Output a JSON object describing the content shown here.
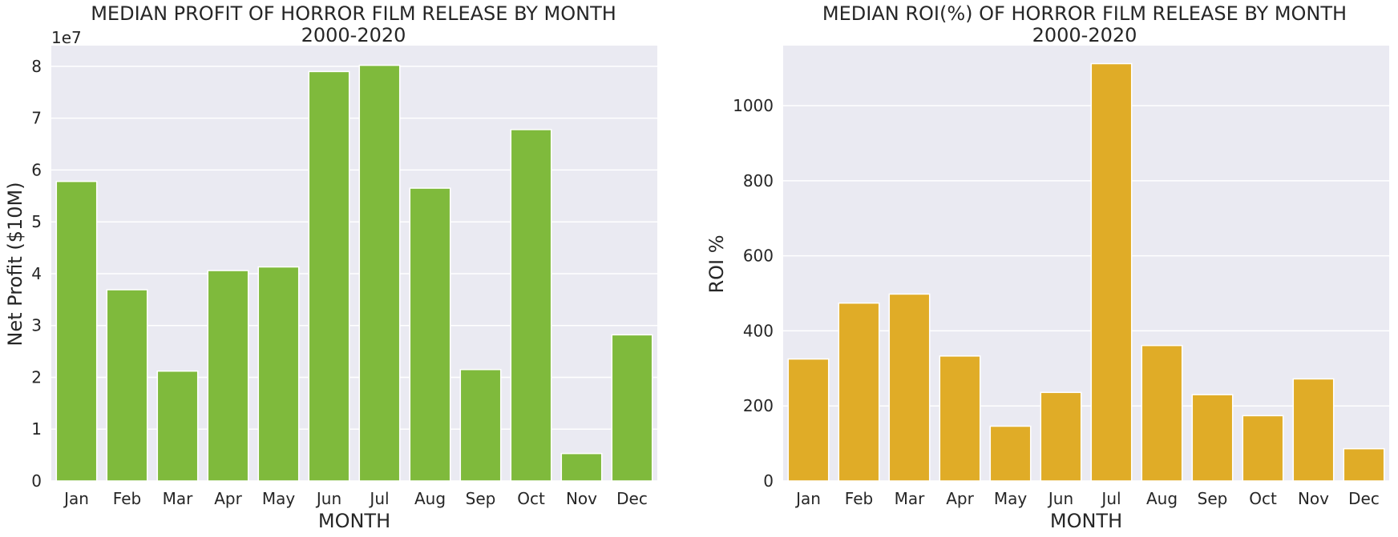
{
  "chart_data": [
    {
      "type": "bar",
      "title": "MEDIAN PROFIT OF HORROR FILM RELEASE BY MONTH",
      "subtitle": "2000-2020",
      "xlabel": "MONTH",
      "ylabel": "Net Profit ($10M)",
      "offset_label": "1e7",
      "categories": [
        "Jan",
        "Feb",
        "Mar",
        "Apr",
        "May",
        "Jun",
        "Jul",
        "Aug",
        "Sep",
        "Oct",
        "Nov",
        "Dec"
      ],
      "values": [
        57800000,
        36900000,
        21200000,
        40600000,
        41300000,
        79000000,
        80200000,
        56500000,
        21500000,
        67800000,
        5300000,
        28200000
      ],
      "ylim": [
        0,
        84000000
      ],
      "yticks": [
        0,
        10000000,
        20000000,
        30000000,
        40000000,
        50000000,
        60000000,
        70000000,
        80000000
      ],
      "ytick_labels": [
        "0",
        "1",
        "2",
        "3",
        "4",
        "5",
        "6",
        "7",
        "8"
      ],
      "color": "#7fba3c",
      "background": "#eaeaf2",
      "grid": true
    },
    {
      "type": "bar",
      "title": "MEDIAN ROI(%) OF HORROR FILM RELEASE BY MONTH",
      "subtitle": "2000-2020",
      "xlabel": "MONTH",
      "ylabel": "ROI %",
      "categories": [
        "Jan",
        "Feb",
        "Mar",
        "Apr",
        "May",
        "Jun",
        "Jul",
        "Aug",
        "Sep",
        "Oct",
        "Nov",
        "Dec"
      ],
      "values": [
        325,
        474,
        498,
        333,
        146,
        236,
        1112,
        361,
        230,
        174,
        272,
        86
      ],
      "ylim": [
        0,
        1160
      ],
      "yticks": [
        0,
        200,
        400,
        600,
        800,
        1000
      ],
      "ytick_labels": [
        "0",
        "200",
        "400",
        "600",
        "800",
        "1000"
      ],
      "color": "#e0ac27",
      "background": "#eaeaf2",
      "grid": true
    }
  ]
}
